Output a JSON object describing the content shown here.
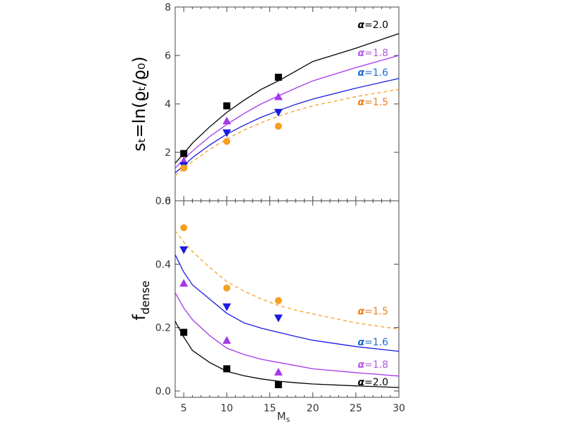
{
  "chart_data": [
    {
      "type": "line",
      "panel": "top",
      "ylabel": "sₜ=ln(ϱₜ/ϱ₀)",
      "xlabel": "",
      "xlim": [
        4,
        30
      ],
      "ylim": [
        0,
        8
      ],
      "yticks": [
        0,
        2,
        4,
        6,
        8
      ],
      "xticks": [
        5,
        10,
        15,
        20,
        25,
        30
      ],
      "xtick_labels_visible": false,
      "series": [
        {
          "name": "α=2.0",
          "alpha": "2.0",
          "color": "#000000",
          "dashed": false,
          "marker": "square",
          "x": [
            4,
            5,
            6,
            8,
            10,
            12,
            14,
            16,
            18,
            20,
            25,
            30
          ],
          "y": [
            1.55,
            1.95,
            2.38,
            3.05,
            3.65,
            4.15,
            4.6,
            4.95,
            5.35,
            5.75,
            6.3,
            6.9
          ],
          "points": {
            "x": [
              5,
              10,
              16
            ],
            "y": [
              1.95,
              3.92,
              5.1
            ]
          }
        },
        {
          "name": "α=1.8",
          "alpha": "1.8",
          "color": "#a538e8",
          "dashed": false,
          "marker": "triangle-up",
          "x": [
            4,
            5,
            6,
            8,
            10,
            12,
            14,
            16,
            18,
            20,
            25,
            30
          ],
          "y": [
            1.35,
            1.7,
            2.05,
            2.65,
            3.15,
            3.6,
            4.0,
            4.33,
            4.65,
            4.95,
            5.5,
            6.0
          ],
          "points": {
            "x": [
              5,
              10,
              16
            ],
            "y": [
              1.65,
              3.3,
              4.3
            ]
          }
        },
        {
          "name": "α=1.6",
          "alpha": "1.6",
          "color": "#1a1ae0",
          "dashed": false,
          "marker": "triangle-down",
          "x": [
            4,
            5,
            6,
            8,
            10,
            12,
            14,
            16,
            18,
            20,
            25,
            30
          ],
          "y": [
            1.15,
            1.45,
            1.78,
            2.3,
            2.75,
            3.12,
            3.45,
            3.72,
            3.98,
            4.2,
            4.65,
            5.05
          ],
          "points": {
            "x": [
              5,
              10,
              16
            ],
            "y": [
              1.45,
              2.8,
              3.65
            ]
          }
        },
        {
          "name": "α=1.5",
          "alpha": "1.5",
          "color": "#f5a020",
          "dashed": true,
          "marker": "circle",
          "x": [
            4,
            5,
            6,
            8,
            10,
            12,
            14,
            16,
            18,
            20,
            25,
            30
          ],
          "y": [
            1.05,
            1.32,
            1.62,
            2.12,
            2.55,
            2.92,
            3.22,
            3.5,
            3.72,
            3.92,
            4.3,
            4.6
          ],
          "points": {
            "x": [
              5,
              10,
              16
            ],
            "y": [
              1.35,
              2.45,
              3.08
            ]
          }
        }
      ],
      "annotations": [
        {
          "symbol": "α",
          "text": "=2.0",
          "color": "#000000"
        },
        {
          "symbol": "α",
          "text": "=1.8",
          "color": "#b05ce0"
        },
        {
          "symbol": "α",
          "text": "=1.6",
          "color": "#1a6fd0"
        },
        {
          "symbol": "α",
          "text": "=1.5",
          "color": "#e8801a"
        }
      ]
    },
    {
      "type": "line",
      "panel": "bottom",
      "ylabel": "f​dense",
      "ylabel_main": "f",
      "ylabel_sub": "dense",
      "xlabel": "M",
      "xlabel_sub": "s",
      "xlim": [
        4,
        30
      ],
      "ylim": [
        -0.02,
        0.6
      ],
      "yticks": [
        0.0,
        0.2,
        0.4,
        0.6
      ],
      "ytick_labels": [
        "0.0",
        "0.2",
        "0.4",
        "0.6"
      ],
      "xticks": [
        5,
        10,
        15,
        20,
        25,
        30
      ],
      "xtick_labels": [
        "5",
        "10",
        "15",
        "20",
        "25",
        "30"
      ],
      "series": [
        {
          "name": "α=1.5",
          "alpha": "1.5",
          "color": "#f5a020",
          "dashed": true,
          "marker": "circle",
          "x": [
            4,
            5,
            6,
            8,
            10,
            12,
            14,
            16,
            18,
            20,
            25,
            30
          ],
          "y": [
            0.505,
            0.47,
            0.44,
            0.39,
            0.345,
            0.315,
            0.29,
            0.27,
            0.255,
            0.243,
            0.215,
            0.195
          ],
          "points": {
            "x": [
              5,
              10,
              16
            ],
            "y": [
              0.515,
              0.325,
              0.285
            ]
          }
        },
        {
          "name": "α=1.6",
          "alpha": "1.6",
          "color": "#1a1ae0",
          "dashed": false,
          "marker": "triangle-down",
          "x": [
            4,
            5,
            6,
            8,
            10,
            12,
            14,
            16,
            18,
            20,
            25,
            30
          ],
          "y": [
            0.43,
            0.375,
            0.335,
            0.29,
            0.245,
            0.215,
            0.198,
            0.185,
            0.172,
            0.16,
            0.14,
            0.125
          ],
          "points": {
            "x": [
              5,
              10,
              16
            ],
            "y": [
              0.445,
              0.265,
              0.23
            ]
          }
        },
        {
          "name": "α=1.8",
          "alpha": "1.8",
          "color": "#a538e8",
          "dashed": false,
          "marker": "triangle-up",
          "x": [
            4,
            5,
            6,
            8,
            10,
            12,
            14,
            16,
            18,
            20,
            25,
            30
          ],
          "y": [
            0.31,
            0.262,
            0.225,
            0.175,
            0.135,
            0.115,
            0.1,
            0.09,
            0.08,
            0.07,
            0.058,
            0.047
          ],
          "points": {
            "x": [
              5,
              10,
              16
            ],
            "y": [
              0.34,
              0.16,
              0.06
            ]
          }
        },
        {
          "name": "α=2.0",
          "alpha": "2.0",
          "color": "#000000",
          "dashed": false,
          "marker": "square",
          "x": [
            4,
            5,
            6,
            8,
            10,
            12,
            14,
            16,
            18,
            20,
            25,
            30
          ],
          "y": [
            0.22,
            0.17,
            0.128,
            0.09,
            0.062,
            0.048,
            0.038,
            0.031,
            0.026,
            0.022,
            0.016,
            0.011
          ],
          "points": {
            "x": [
              5,
              10,
              16
            ],
            "y": [
              0.185,
              0.07,
              0.02
            ]
          }
        }
      ],
      "annotations": [
        {
          "symbol": "α",
          "text": "=1.5",
          "color": "#e8801a"
        },
        {
          "symbol": "α",
          "text": "=1.6",
          "color": "#1a6fd0"
        },
        {
          "symbol": "α",
          "text": "=1.8",
          "color": "#b05ce0"
        },
        {
          "symbol": "α",
          "text": "=2.0",
          "color": "#000000"
        }
      ]
    }
  ]
}
